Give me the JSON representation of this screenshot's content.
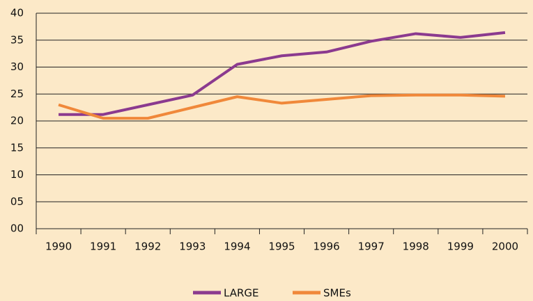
{
  "chart_data": {
    "type": "line",
    "categories": [
      "1990",
      "1991",
      "1992",
      "1993",
      "1994",
      "1995",
      "1996",
      "1997",
      "1998",
      "1999",
      "2000"
    ],
    "series": [
      {
        "name": "LARGE",
        "color": "#8b3a8f",
        "values": [
          21.2,
          21.2,
          23.0,
          24.8,
          30.5,
          32.1,
          32.8,
          34.8,
          36.2,
          35.5,
          36.4
        ]
      },
      {
        "name": "SMEs",
        "color": "#f0883a",
        "values": [
          23.0,
          20.5,
          20.5,
          22.5,
          24.5,
          23.3,
          24.0,
          24.7,
          24.8,
          24.8,
          24.6
        ]
      }
    ],
    "ylim": [
      0,
      40
    ],
    "yticks": [
      {
        "value": 0,
        "label": "00"
      },
      {
        "value": 5,
        "label": "05"
      },
      10,
      15,
      20,
      25,
      30,
      35,
      40
    ],
    "grid": true,
    "legend": "bottom"
  }
}
